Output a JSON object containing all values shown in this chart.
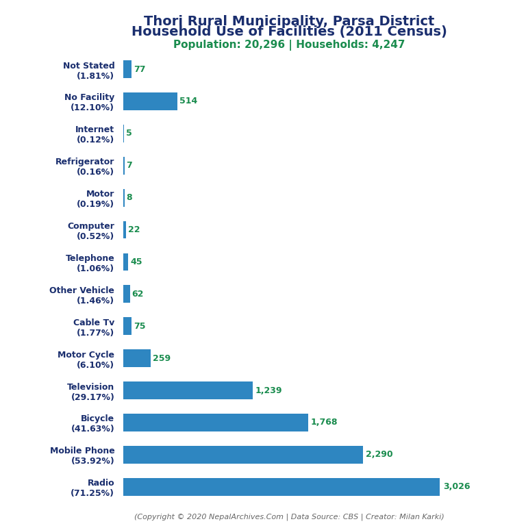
{
  "title_line1": "Thori Rural Municipality, Parsa District",
  "title_line2": "Household Use of Facilities (2011 Census)",
  "subtitle": "Population: 20,296 | Households: 4,247",
  "footer": "(Copyright © 2020 NepalArchives.Com | Data Source: CBS | Creator: Milan Karki)",
  "categories": [
    "Not Stated\n(1.81%)",
    "No Facility\n(12.10%)",
    "Internet\n(0.12%)",
    "Refrigerator\n(0.16%)",
    "Motor\n(0.19%)",
    "Computer\n(0.52%)",
    "Telephone\n(1.06%)",
    "Other Vehicle\n(1.46%)",
    "Cable Tv\n(1.77%)",
    "Motor Cycle\n(6.10%)",
    "Television\n(29.17%)",
    "Bicycle\n(41.63%)",
    "Mobile Phone\n(53.92%)",
    "Radio\n(71.25%)"
  ],
  "values": [
    77,
    514,
    5,
    7,
    8,
    22,
    45,
    62,
    75,
    259,
    1239,
    1768,
    2290,
    3026
  ],
  "value_labels": [
    "77",
    "514",
    "5",
    "7",
    "8",
    "22",
    "45",
    "62",
    "75",
    "259",
    "1,239",
    "1,768",
    "2,290",
    "3,026"
  ],
  "bar_color": "#2e86c1",
  "title_color": "#1a2e6e",
  "subtitle_color": "#1a8c4e",
  "footer_color": "#666666",
  "value_color": "#1a8c4e",
  "label_color": "#1a2e6e",
  "background_color": "#ffffff",
  "figsize": [
    7.68,
    7.68
  ],
  "dpi": 100
}
